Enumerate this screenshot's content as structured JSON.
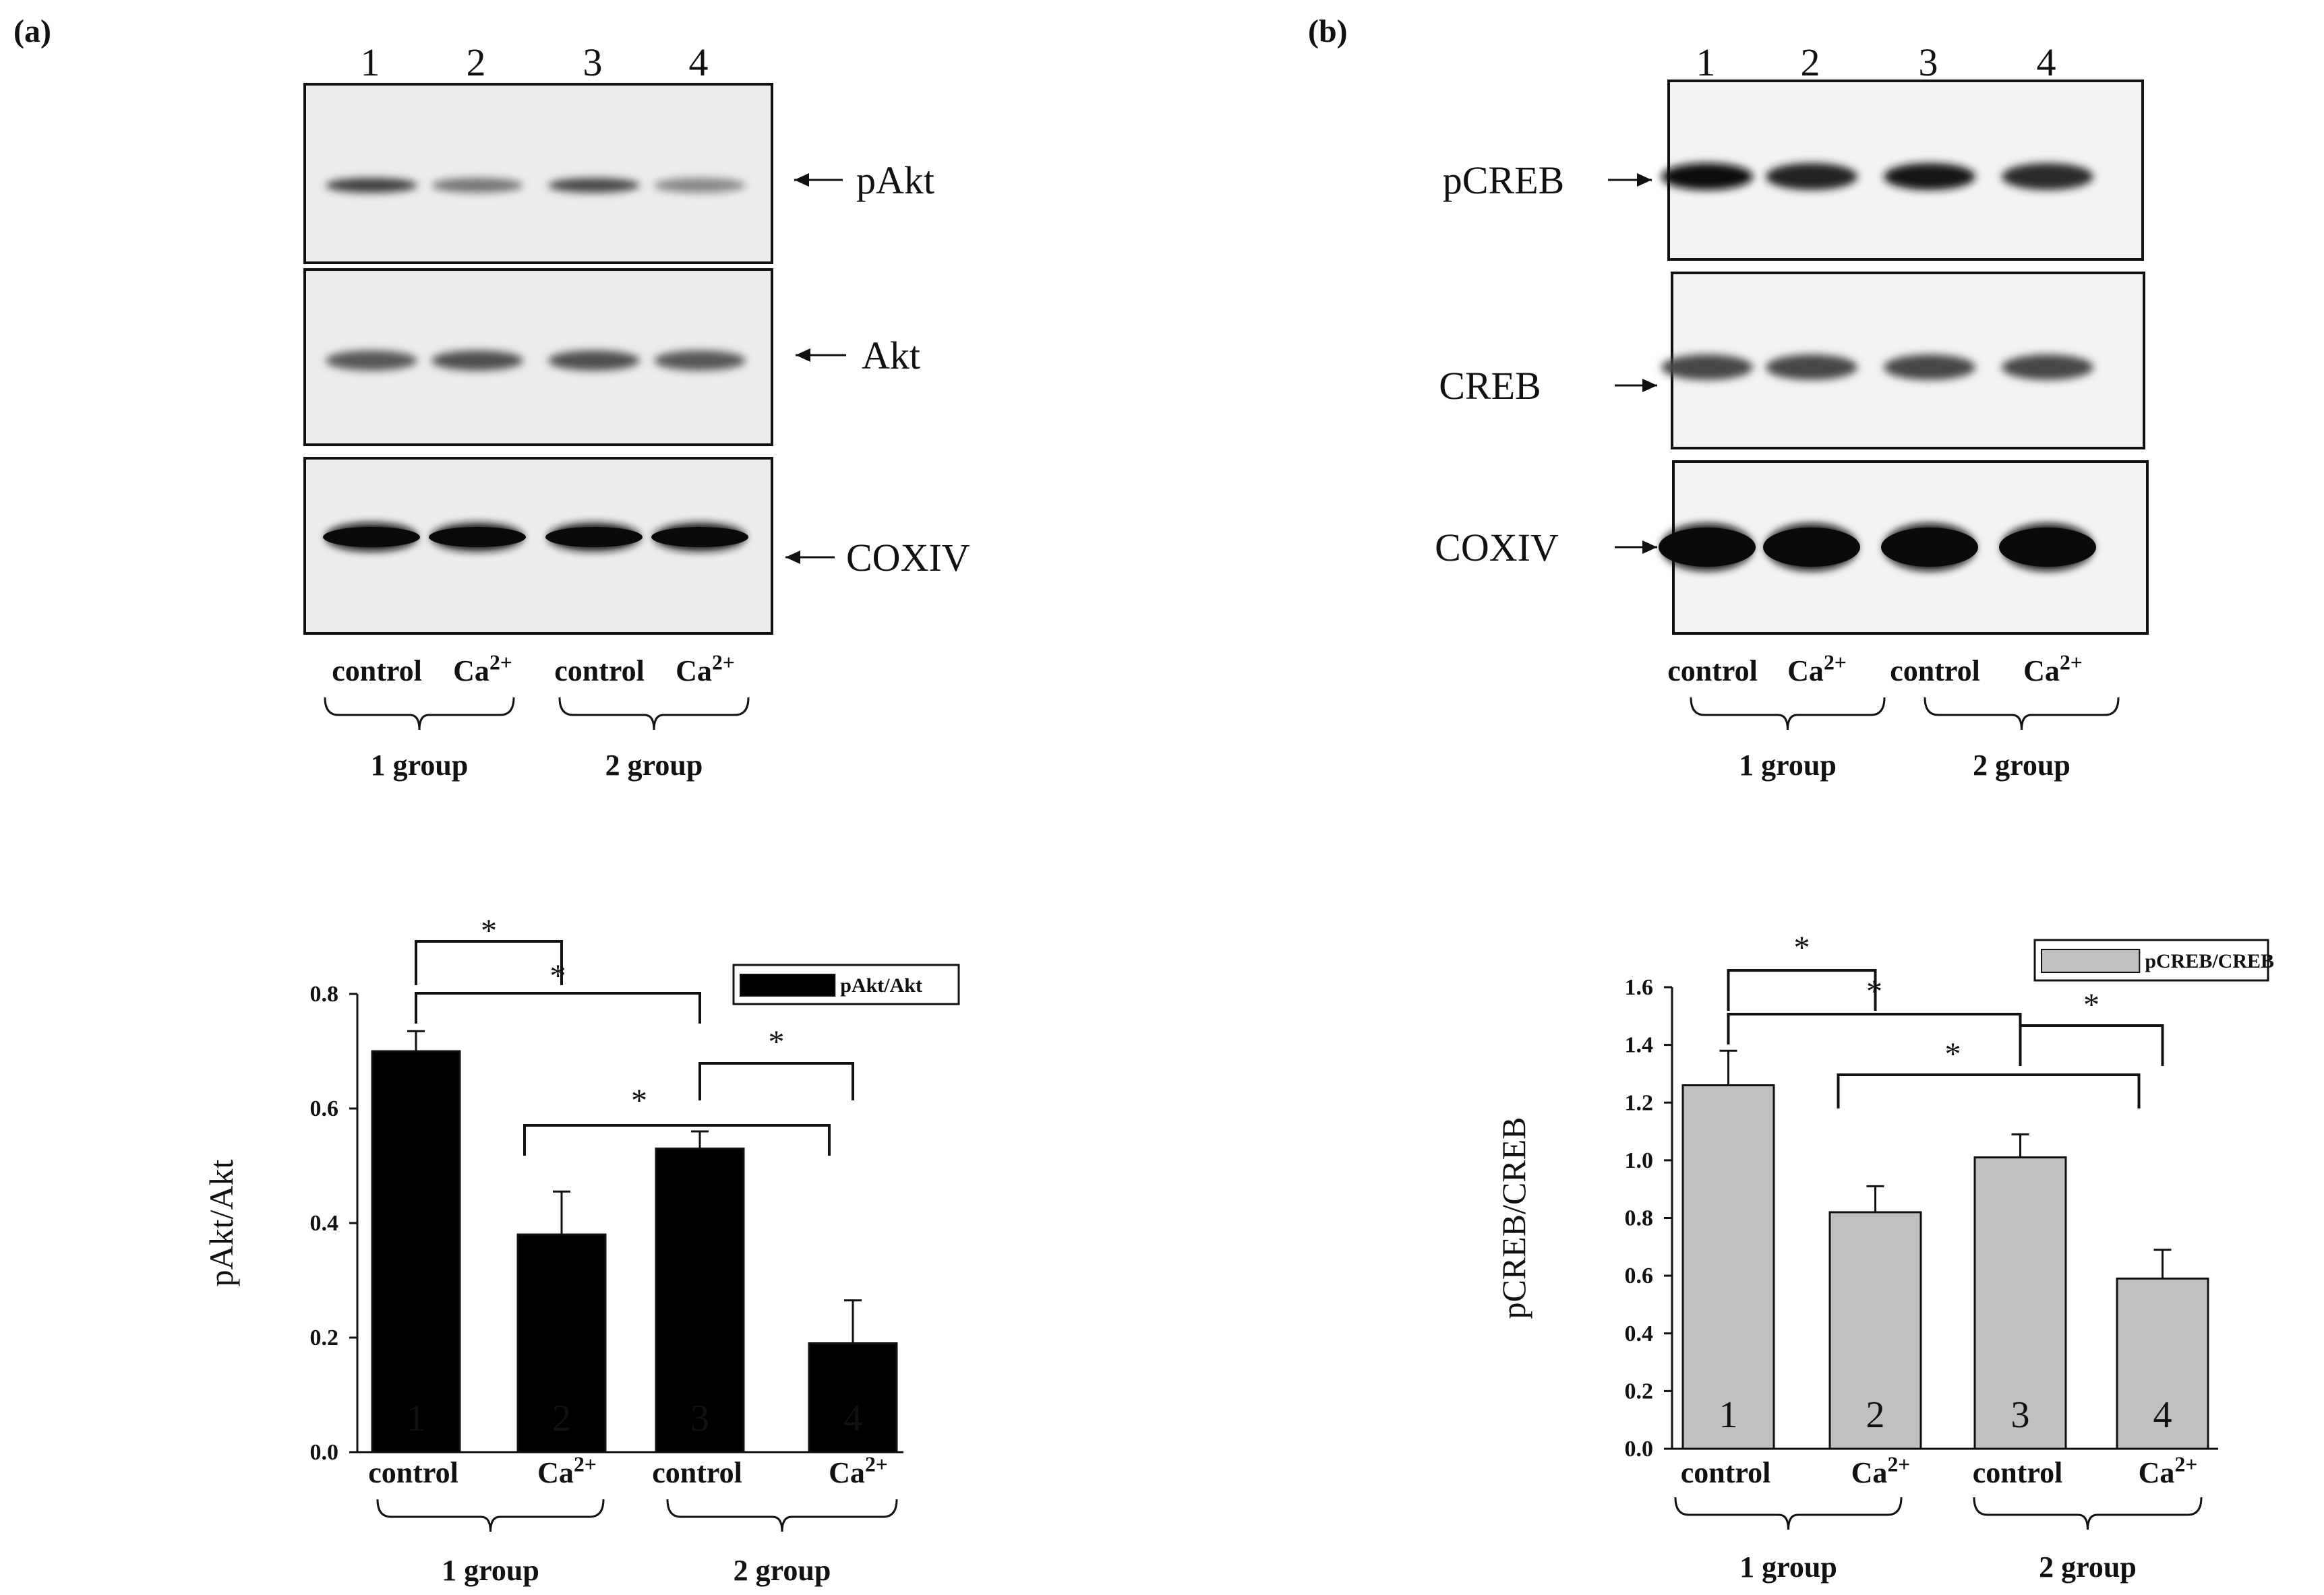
{
  "panels": [
    {
      "label": "(a)",
      "blot": {
        "lanes": [
          "1",
          "2",
          "3",
          "4"
        ],
        "bands": [
          {
            "name": "pAkt",
            "intensity": [
              0.75,
              0.45,
              0.7,
              0.35
            ]
          },
          {
            "name": "Akt",
            "intensity": [
              0.6,
              0.65,
              0.65,
              0.6
            ]
          },
          {
            "name": "COXIV",
            "intensity": [
              1.0,
              0.95,
              0.95,
              0.95
            ]
          }
        ],
        "conditions": [
          "control",
          "Ca",
          "control",
          "Ca"
        ],
        "superscript": "2+",
        "groups": [
          "1 group",
          "2 group"
        ]
      }
    },
    {
      "label": "(b)",
      "blot": {
        "lanes": [
          "1",
          "2",
          "3",
          "4"
        ],
        "bands": [
          {
            "name": "pCREB",
            "intensity": [
              1.0,
              0.9,
              0.95,
              0.85
            ]
          },
          {
            "name": "CREB",
            "intensity": [
              0.7,
              0.7,
              0.7,
              0.7
            ]
          },
          {
            "name": "COXIV",
            "intensity": [
              1.0,
              1.0,
              1.0,
              1.0
            ]
          }
        ],
        "conditions": [
          "control",
          "Ca",
          "control",
          "Ca"
        ],
        "superscript": "2+",
        "groups": [
          "1 group",
          "2 group"
        ]
      }
    }
  ],
  "chart_data": [
    {
      "type": "bar",
      "categories": [
        "1",
        "2",
        "3",
        "4"
      ],
      "values": [
        0.7,
        0.38,
        0.53,
        0.19
      ],
      "errors": [
        0.035,
        0.075,
        0.03,
        0.075
      ],
      "ylabel": "pAkt/Akt",
      "ylim": [
        0,
        0.8
      ],
      "ticks": [
        "0.0",
        "0.2",
        "0.4",
        "0.6",
        "0.8"
      ],
      "legend": "pAkt/Akt",
      "bar_color": "#000000",
      "bar_label_color": "#ffffff",
      "conditions": [
        "control",
        "Ca",
        "control",
        "Ca"
      ],
      "superscript": "2+",
      "groups": [
        "1 group",
        "2 group"
      ],
      "significance": [
        {
          "from": 1,
          "to": 2,
          "label": "*"
        },
        {
          "from": 1,
          "to": 3,
          "label": "*"
        },
        {
          "from": 2,
          "to": 4,
          "label": "*"
        },
        {
          "from": 3,
          "to": 4,
          "label": "*"
        }
      ]
    },
    {
      "type": "bar",
      "categories": [
        "1",
        "2",
        "3",
        "4"
      ],
      "values": [
        1.26,
        0.82,
        1.01,
        0.59
      ],
      "errors": [
        0.12,
        0.09,
        0.08,
        0.1
      ],
      "ylabel": "pCREB/CREB",
      "ylim": [
        0,
        1.6
      ],
      "ticks": [
        "0.0",
        "0.2",
        "0.4",
        "0.6",
        "0.8",
        "1.0",
        "1.2",
        "1.4",
        "1.6"
      ],
      "legend": "pCREB/CREB",
      "bar_color": "#c0c0c0",
      "bar_label_color": "#111111",
      "conditions": [
        "control",
        "Ca",
        "control",
        "Ca"
      ],
      "superscript": "2+",
      "groups": [
        "1 group",
        "2 group"
      ],
      "significance": [
        {
          "from": 1,
          "to": 2,
          "label": "*"
        },
        {
          "from": 1,
          "to": 3,
          "label": "*"
        },
        {
          "from": 2,
          "to": 4,
          "label": "*"
        },
        {
          "from": 3,
          "to": 4,
          "label": "*"
        }
      ]
    }
  ]
}
